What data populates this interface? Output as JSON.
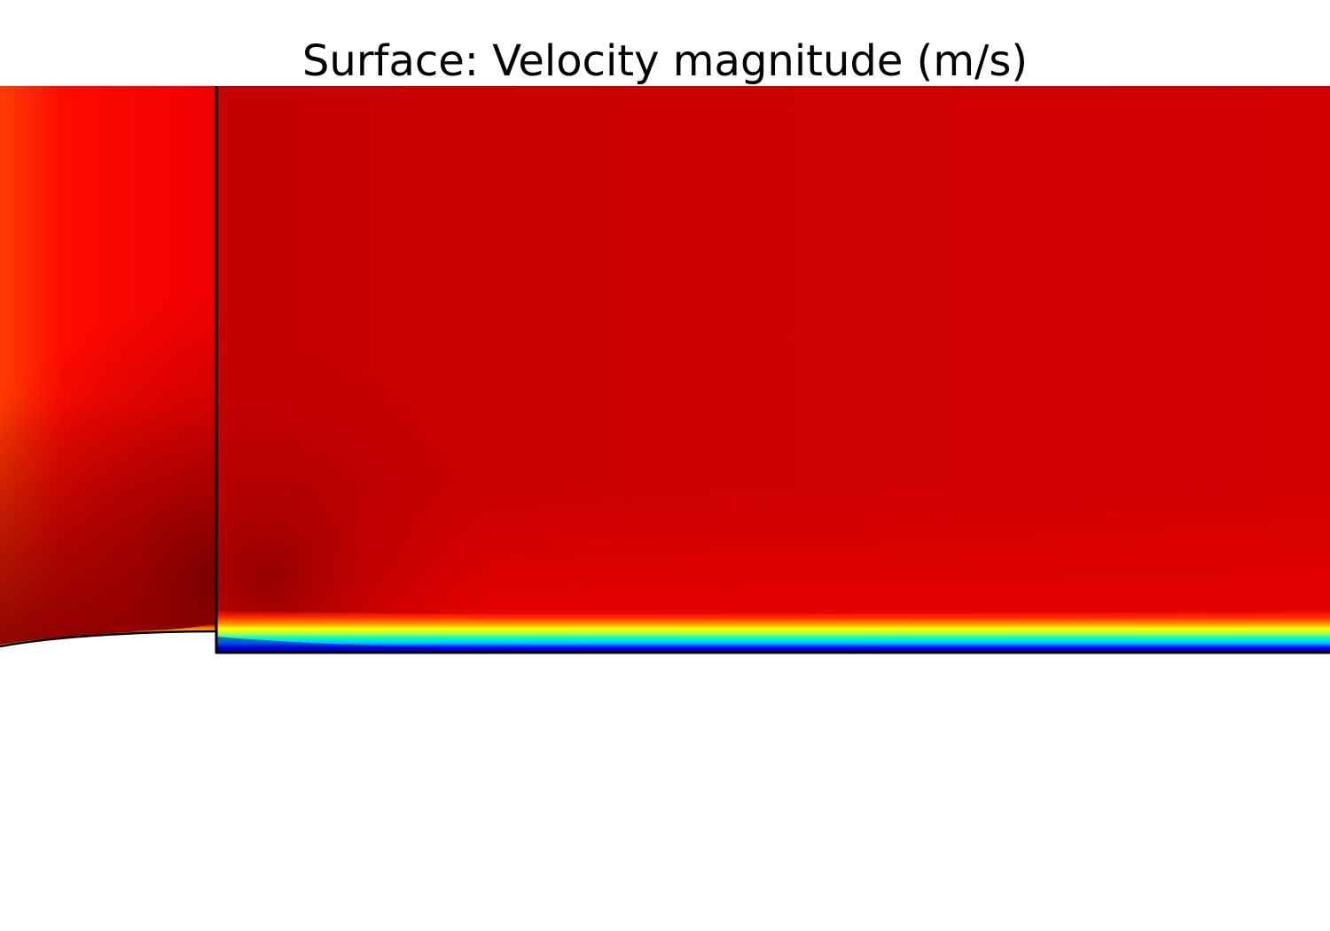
{
  "plot": {
    "title": "Surface: Velocity magnitude (m/s)",
    "plot_type": "surface",
    "quantity": "Velocity magnitude",
    "unit": "m/s",
    "colormap": "rainbow",
    "colormap_stops": [
      "#00008b",
      "#0000ff",
      "#00bfff",
      "#00ffc0",
      "#c0ff30",
      "#ffff00",
      "#ffa000",
      "#ff2a00",
      "#ff0000"
    ],
    "colors": {
      "background": "#ffffff",
      "boundary_lines": "#000000",
      "freestream_red": "#d40000",
      "inlet_red": "#ff0a00",
      "inlet_edge_orange": "#ff3c00",
      "wake_dark_red": "#8a0000"
    }
  }
}
